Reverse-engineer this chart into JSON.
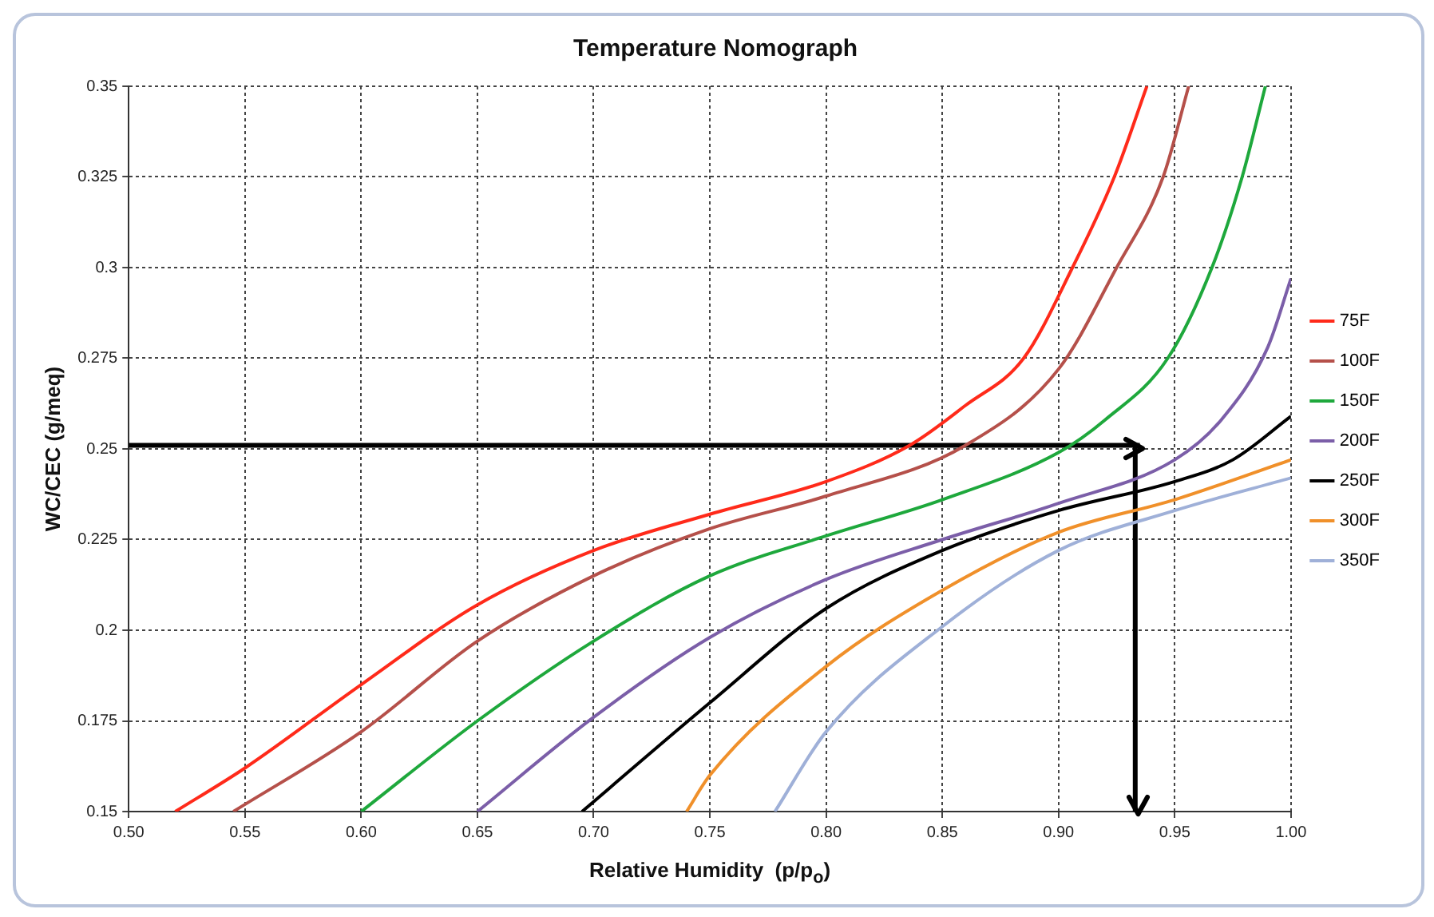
{
  "chart_data": {
    "type": "line",
    "title": "Temperature Nomograph",
    "xlabel": "Relative Humidity  (p/p$_{o}$)",
    "ylabel": "WC/CEC (g/meq)",
    "xlim": [
      0.5,
      1.0
    ],
    "ylim": [
      0.15,
      0.35
    ],
    "xticks": [
      {
        "value": 0.5,
        "label": "0.50"
      },
      0.55,
      {
        "value": 0.6,
        "label": "0.60"
      },
      0.65,
      {
        "value": 0.7,
        "label": "0.70"
      },
      0.75,
      {
        "value": 0.8,
        "label": "0.80"
      },
      0.85,
      {
        "value": 0.9,
        "label": "0.90"
      },
      0.95,
      {
        "value": 1.0,
        "label": "1.00"
      }
    ],
    "yticks": [
      0.15,
      0.175,
      0.2,
      0.225,
      0.25,
      0.275,
      0.3,
      0.325,
      0.35
    ],
    "grid": true,
    "legend": "right",
    "marker": "none",
    "line_style": "solid",
    "series": [
      {
        "name": "75F",
        "color": "#ff2a1a",
        "x": [
          0.52,
          0.55,
          0.6,
          0.65,
          0.7,
          0.75,
          0.8,
          0.836,
          0.86,
          0.885,
          0.906,
          0.924,
          0.938
        ],
        "values": [
          0.15,
          0.162,
          0.185,
          0.207,
          0.222,
          0.232,
          0.241,
          0.251,
          0.262,
          0.275,
          0.3,
          0.325,
          0.35
        ]
      },
      {
        "name": "100F",
        "color": "#b5504a",
        "x": [
          0.545,
          0.6,
          0.65,
          0.7,
          0.75,
          0.8,
          0.86,
          0.9,
          0.925,
          0.945,
          0.956
        ],
        "values": [
          0.15,
          0.172,
          0.197,
          0.215,
          0.228,
          0.237,
          0.251,
          0.272,
          0.3,
          0.325,
          0.35
        ]
      },
      {
        "name": "150F",
        "color": "#1ea83c",
        "x": [
          0.6,
          0.65,
          0.7,
          0.75,
          0.8,
          0.85,
          0.9,
          0.92,
          0.947,
          0.966,
          0.979,
          0.989
        ],
        "values": [
          0.15,
          0.175,
          0.197,
          0.215,
          0.226,
          0.236,
          0.249,
          0.258,
          0.275,
          0.3,
          0.325,
          0.35
        ]
      },
      {
        "name": "200F",
        "color": "#7b5ea8",
        "x": [
          0.65,
          0.7,
          0.75,
          0.8,
          0.85,
          0.9,
          0.95,
          0.97,
          0.99,
          1.0
        ],
        "values": [
          0.15,
          0.176,
          0.198,
          0.214,
          0.225,
          0.235,
          0.247,
          0.258,
          0.278,
          0.297
        ]
      },
      {
        "name": "250F",
        "color": "#000000",
        "x": [
          0.695,
          0.75,
          0.8,
          0.85,
          0.9,
          0.95,
          0.975,
          1.0
        ],
        "values": [
          0.15,
          0.18,
          0.206,
          0.222,
          0.233,
          0.241,
          0.247,
          0.259
        ]
      },
      {
        "name": "300F",
        "color": "#f0902a",
        "x": [
          0.74,
          0.75,
          0.8,
          0.85,
          0.9,
          0.95,
          1.0
        ],
        "values": [
          0.15,
          0.16,
          0.19,
          0.211,
          0.227,
          0.236,
          0.247
        ]
      },
      {
        "name": "350F",
        "color": "#9fb0d8",
        "x": [
          0.778,
          0.8,
          0.85,
          0.9,
          0.95,
          1.0
        ],
        "values": [
          0.15,
          0.172,
          0.201,
          0.222,
          0.233,
          0.242
        ]
      },
      {
        "type": "line",
        "color": "#000000",
        "x": [
          0.5,
          0.935,
          0.933,
          0.933
        ],
        "values": [
          0.251,
          0.251,
          0.251,
          0.15
        ]
      }
    ]
  }
}
